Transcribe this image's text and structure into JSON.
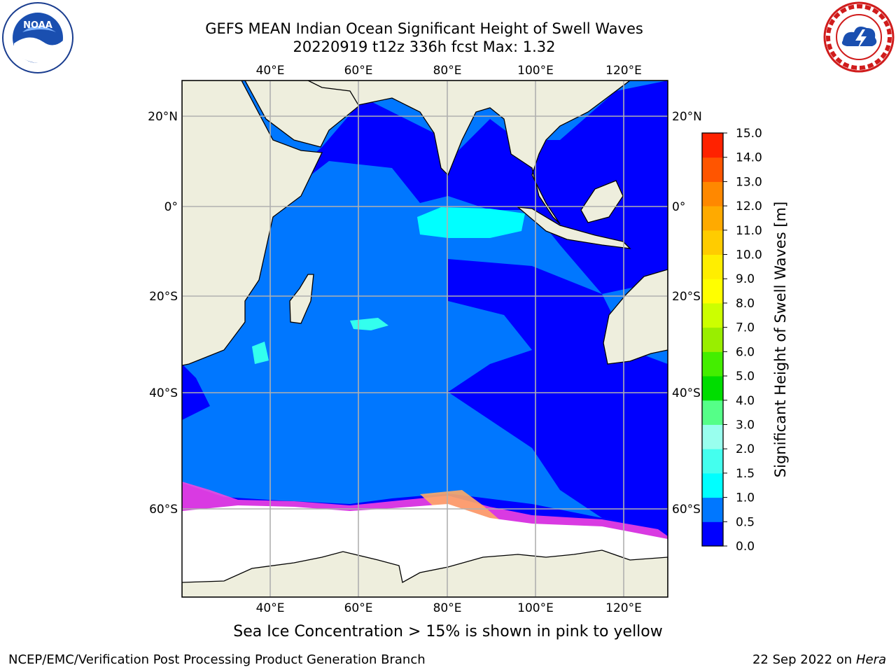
{
  "header": {
    "title_line_1": "GEFS MEAN Indian Ocean Significant Height of Swell Waves",
    "title_line_2": "20220919 t12z 336h fcst   Max: 1.32"
  },
  "logos": {
    "left": "noaa-logo",
    "right": "national-weather-service-logo"
  },
  "map": {
    "region": "Indian Ocean",
    "lon_range": [
      20,
      130
    ],
    "lat_range": [
      -75,
      28
    ],
    "lon_ticks": [
      "40°E",
      "60°E",
      "80°E",
      "100°E",
      "120°E"
    ],
    "lat_ticks": [
      "20°N",
      "0°",
      "20°S",
      "40°S",
      "60°S"
    ],
    "land_color": "#eeeedd",
    "ocean_colors": {
      "0.0-0.5": "#0000ff",
      "0.5-1.0": "#0077ff",
      "1.0-1.5": "#00ffff"
    },
    "grid": true
  },
  "colorbar": {
    "label": "Significant Height of Swell Waves [m]",
    "ticks": [
      "0.0",
      "0.5",
      "1.0",
      "1.5",
      "2.0",
      "3.0",
      "4.0",
      "5.0",
      "6.0",
      "7.0",
      "8.0",
      "9.0",
      "10.0",
      "11.0",
      "12.0",
      "13.0",
      "14.0",
      "15.0"
    ],
    "colors": [
      "#0000ff",
      "#0077ff",
      "#00ffff",
      "#44ffee",
      "#99ffee",
      "#55ff88",
      "#00dd00",
      "#44ee00",
      "#99ee00",
      "#ccff00",
      "#ffff00",
      "#ffee00",
      "#ffcc00",
      "#ffaa00",
      "#ff8800",
      "#ff5500",
      "#ff2200",
      "#ff0000"
    ]
  },
  "notes": {
    "ice": "Sea Ice Concentration > 15% is shown in pink to yellow",
    "branch": "NCEP/EMC/Verification Post Processing Product Generation Branch",
    "date": "22 Sep 2022 on",
    "machine": "Hera"
  }
}
